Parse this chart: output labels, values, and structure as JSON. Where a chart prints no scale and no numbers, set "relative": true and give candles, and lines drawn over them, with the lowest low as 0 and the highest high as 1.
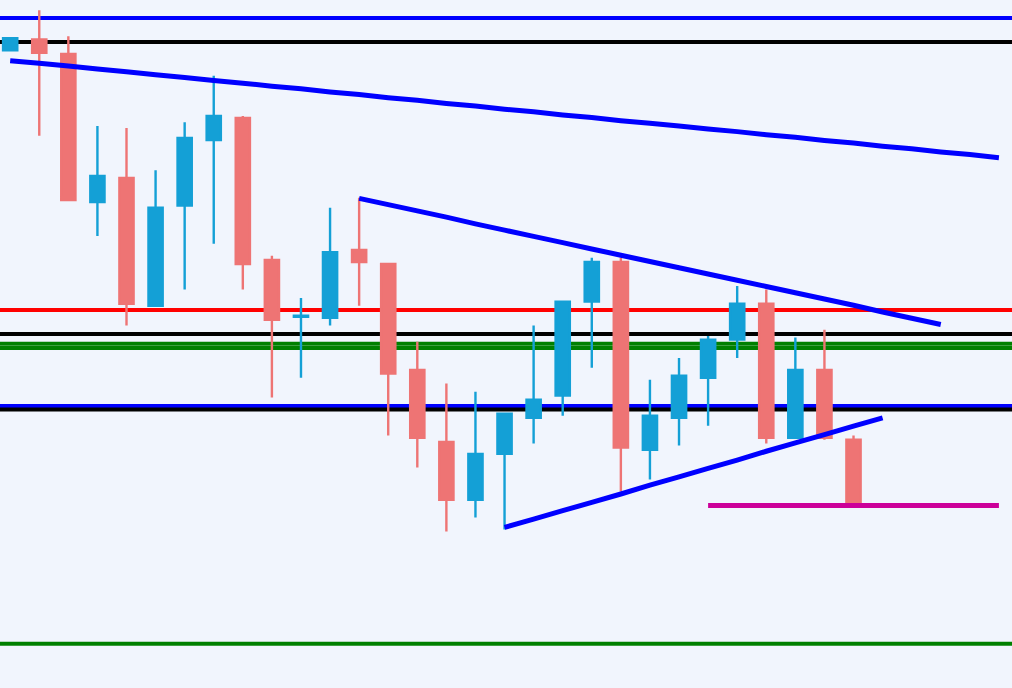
{
  "chart_data": {
    "type": "candlestick",
    "relative": true,
    "categories": [
      null,
      null,
      null,
      null,
      null,
      null,
      null,
      null,
      null,
      null,
      null,
      null,
      null,
      null,
      null,
      null,
      null,
      null,
      null,
      null,
      null,
      null,
      null,
      null,
      null,
      null,
      null,
      null,
      null,
      null,
      null,
      null,
      null,
      null,
      null
    ],
    "ohlc": [
      [
        0.923,
        0.946,
        0.923,
        0.946
      ],
      [
        0.944,
        1.0,
        0.759,
        0.918
      ],
      [
        0.916,
        0.95,
        0.636,
        0.636
      ],
      [
        0.632,
        0.778,
        0.567,
        0.682
      ],
      [
        0.678,
        0.774,
        0.395,
        0.437
      ],
      [
        0.433,
        0.693,
        0.433,
        0.621
      ],
      [
        0.625,
        0.785,
        0.464,
        0.755
      ],
      [
        0.751,
        0.874,
        0.552,
        0.797
      ],
      [
        0.793,
        0.797,
        0.464,
        0.513
      ],
      [
        0.521,
        0.529,
        0.257,
        0.406
      ],
      [
        0.412,
        0.448,
        0.295,
        0.414
      ],
      [
        0.41,
        0.621,
        0.395,
        0.536
      ],
      [
        0.54,
        0.64,
        0.433,
        0.517
      ],
      [
        0.513,
        0.513,
        0.184,
        0.303
      ],
      [
        0.31,
        0.364,
        0.123,
        0.18
      ],
      [
        0.172,
        0.284,
        0.0,
        0.061
      ],
      [
        0.061,
        0.268,
        0.027,
        0.149
      ],
      [
        0.149,
        0.226,
        0.004,
        0.226
      ],
      [
        0.218,
        0.395,
        0.169,
        0.253
      ],
      [
        0.261,
        0.441,
        0.222,
        0.441
      ],
      [
        0.441,
        0.525,
        0.314,
        0.517
      ],
      [
        0.517,
        0.525,
        0.077,
        0.161
      ],
      [
        0.157,
        0.291,
        0.1,
        0.222
      ],
      [
        0.218,
        0.333,
        0.165,
        0.299
      ],
      [
        0.295,
        0.375,
        0.203,
        0.368
      ],
      [
        0.368,
        0.471,
        0.333,
        0.437
      ],
      [
        0.437,
        0.464,
        0.169,
        0.18
      ],
      [
        0.18,
        0.372,
        0.18,
        0.31
      ],
      [
        0.31,
        0.387,
        0.176,
        0.18
      ],
      [
        0.176,
        0.184,
        0.054,
        0.054
      ],
      null,
      null,
      null,
      null,
      null
    ],
    "colors": [
      "#14a0d6",
      "#ee7474",
      "#ee7474",
      "#14a0d6",
      "#ee7474",
      "#14a0d6",
      "#14a0d6",
      "#14a0d6",
      "#ee7474",
      "#ee7474",
      "#14a0d6",
      "#14a0d6",
      "#ee7474",
      "#ee7474",
      "#ee7474",
      "#ee7474",
      "#14a0d6",
      "#14a0d6",
      "#14a0d6",
      "#14a0d6",
      "#14a0d6",
      "#ee7474",
      "#14a0d6",
      "#14a0d6",
      "#14a0d6",
      "#14a0d6",
      "#ee7474",
      "#14a0d6",
      "#ee7474",
      "#ee7474",
      null,
      null,
      null,
      null,
      null
    ],
    "series": [
      {
        "type": "line",
        "color": "#0000ff",
        "values": [
          0.903,
          0.898,
          0.893,
          0.887,
          0.882,
          0.876,
          0.871,
          0.865,
          0.86,
          0.854,
          0.849,
          0.843,
          0.838,
          0.832,
          0.827,
          0.821,
          0.816,
          0.81,
          0.805,
          0.799,
          0.794,
          0.788,
          0.783,
          0.778,
          0.772,
          0.767,
          0.761,
          0.756,
          0.75,
          0.745,
          0.739,
          0.734,
          0.728,
          0.723,
          0.717
        ]
      },
      {
        "type": "line",
        "color": "#0000ff",
        "values": [
          null,
          null,
          null,
          null,
          null,
          null,
          null,
          null,
          null,
          null,
          null,
          null,
          0.639,
          0.627,
          0.615,
          0.603,
          0.59,
          0.578,
          0.566,
          0.554,
          0.542,
          0.53,
          0.518,
          0.506,
          0.494,
          0.482,
          0.47,
          0.458,
          0.446,
          0.434,
          0.421,
          0.409,
          0.397,
          null,
          null
        ]
      },
      {
        "type": "line",
        "color": "#0000ff",
        "values": [
          null,
          null,
          null,
          null,
          null,
          null,
          null,
          null,
          null,
          null,
          null,
          null,
          null,
          null,
          null,
          null,
          null,
          0.008,
          0.024,
          0.04,
          0.056,
          0.072,
          0.089,
          0.105,
          0.121,
          0.137,
          0.154,
          0.17,
          0.186,
          0.202,
          0.218,
          null,
          null,
          null,
          null
        ]
      },
      {
        "type": "line",
        "color": "#cc0099",
        "values": [
          null,
          null,
          null,
          null,
          null,
          null,
          null,
          null,
          null,
          null,
          null,
          null,
          null,
          null,
          null,
          null,
          null,
          null,
          null,
          null,
          null,
          null,
          null,
          null,
          0.05,
          0.05,
          0.05,
          0.05,
          0.05,
          0.05,
          0.05,
          0.05,
          0.05,
          0.05,
          0.05
        ]
      }
    ],
    "ref_lines": [
      {
        "axis": "y",
        "value": 0.985,
        "color": "#0000ff"
      },
      {
        "axis": "y",
        "value": 0.939,
        "color": "#000000"
      },
      {
        "axis": "y",
        "value": 0.425,
        "color": "#ff0000"
      },
      {
        "axis": "y",
        "value": 0.379,
        "color": "#000000"
      },
      {
        "axis": "y",
        "value": 0.36,
        "color": "#008000"
      },
      {
        "axis": "y",
        "value": 0.352,
        "color": "#008000"
      },
      {
        "axis": "y",
        "value": 0.241,
        "color": "#0000ff"
      },
      {
        "axis": "y",
        "value": 0.234,
        "color": "#000000"
      },
      {
        "axis": "y",
        "value": -0.215,
        "color": "#008000"
      }
    ]
  }
}
